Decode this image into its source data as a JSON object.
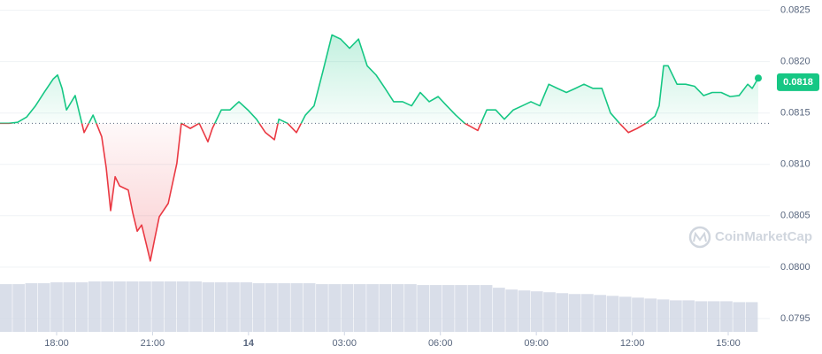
{
  "chart_data": {
    "type": "line",
    "x": [
      16.23,
      16.51,
      16.78,
      17.06,
      17.34,
      17.61,
      17.89,
      18.03,
      18.17,
      18.31,
      18.58,
      18.86,
      19.14,
      19.41,
      19.55,
      19.69,
      19.83,
      19.97,
      20.24,
      20.38,
      20.52,
      20.66,
      20.8,
      20.93,
      21.07,
      21.21,
      21.49,
      21.76,
      21.9,
      22.18,
      22.46,
      22.73,
      22.87,
      23.15,
      23.42,
      23.7,
      23.98,
      24.25,
      24.53,
      24.81,
      24.95,
      25.22,
      25.5,
      25.78,
      26.05,
      26.33,
      26.61,
      26.88,
      27.16,
      27.44,
      27.71,
      27.99,
      28.27,
      28.54,
      28.82,
      29.1,
      29.37,
      29.65,
      29.93,
      30.2,
      30.48,
      30.76,
      31.17,
      31.45,
      31.73,
      32.0,
      32.28,
      32.56,
      32.83,
      33.11,
      33.39,
      33.66,
      33.94,
      34.22,
      34.49,
      34.77,
      35.05,
      35.32,
      35.6,
      35.88,
      36.15,
      36.43,
      36.71,
      36.84,
      36.98,
      37.12,
      37.4,
      37.67,
      37.95,
      38.23,
      38.5,
      38.78,
      39.06,
      39.34,
      39.61,
      39.75,
      39.94
    ],
    "series": [
      {
        "values": [
          0.0814,
          0.0814,
          0.08141,
          0.08146,
          0.08157,
          0.0817,
          0.08183,
          0.08187,
          0.08174,
          0.08153,
          0.08167,
          0.08131,
          0.08148,
          0.08127,
          0.08097,
          0.08055,
          0.08088,
          0.08079,
          0.08075,
          0.08053,
          0.08035,
          0.08041,
          0.08023,
          0.08006,
          0.08028,
          0.08049,
          0.08062,
          0.08101,
          0.0814,
          0.08135,
          0.0814,
          0.08122,
          0.08135,
          0.08153,
          0.08153,
          0.08161,
          0.08153,
          0.08144,
          0.08131,
          0.08124,
          0.08144,
          0.0814,
          0.08131,
          0.08148,
          0.08157,
          0.08191,
          0.08226,
          0.08222,
          0.08213,
          0.08222,
          0.08196,
          0.08187,
          0.08174,
          0.08161,
          0.08161,
          0.08157,
          0.0817,
          0.08161,
          0.08166,
          0.08157,
          0.08148,
          0.0814,
          0.08133,
          0.08153,
          0.08153,
          0.08144,
          0.08153,
          0.08157,
          0.08161,
          0.08157,
          0.08178,
          0.08174,
          0.0817,
          0.08174,
          0.08178,
          0.08174,
          0.08174,
          0.0815,
          0.0814,
          0.08131,
          0.08135,
          0.0814,
          0.08147,
          0.08157,
          0.08196,
          0.08196,
          0.08178,
          0.08178,
          0.08176,
          0.08167,
          0.0817,
          0.0817,
          0.08166,
          0.08167,
          0.08178,
          0.08174,
          0.08184
        ]
      }
    ],
    "baseline": 0.0814,
    "up_color": "#16c784",
    "down_color": "#ea3943",
    "current_price": 0.0818,
    "volume": {
      "color": "#cfd6e4",
      "values": [
        53,
        53,
        54,
        54,
        55,
        55,
        55,
        56,
        56,
        56,
        56,
        56,
        56,
        56,
        56,
        56,
        55,
        55,
        55,
        55,
        54,
        54,
        54,
        54,
        54,
        53,
        53,
        53,
        53,
        53,
        53,
        53,
        53,
        52,
        52,
        52,
        52,
        52,
        52,
        49,
        47,
        46,
        45,
        44,
        43,
        42,
        42,
        41,
        40,
        39,
        38,
        37,
        36,
        35,
        35,
        34,
        34,
        34,
        33,
        33
      ]
    },
    "xlim": [
      16.23,
      40.3
    ],
    "ylim": [
      0.07937,
      0.0826
    ],
    "yticks": [
      0.0795,
      0.08,
      0.0805,
      0.081,
      0.0815,
      0.082,
      0.0825
    ],
    "ytick_labels": [
      "0.0795",
      "0.0800",
      "0.0805",
      "0.0810",
      "0.0815",
      "0.0820",
      "0.0825"
    ],
    "xticks": [
      {
        "value": 18,
        "label": "18:00"
      },
      {
        "value": 21,
        "label": "21:00"
      },
      {
        "value": 24,
        "label": "14"
      },
      {
        "value": 27,
        "label": "03:00"
      },
      {
        "value": 30,
        "label": "06:00"
      },
      {
        "value": 33,
        "label": "09:00"
      },
      {
        "value": 36,
        "label": "12:00"
      },
      {
        "value": 39,
        "label": "15:00"
      }
    ],
    "grid": true,
    "watermark": "CoinMarketCap"
  }
}
